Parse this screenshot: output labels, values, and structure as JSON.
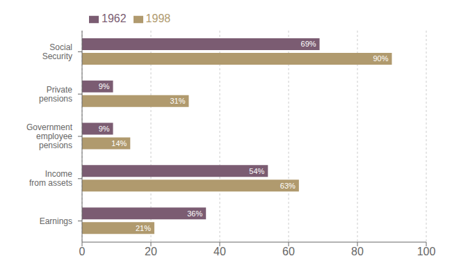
{
  "chart_data": {
    "type": "bar",
    "orientation": "horizontal",
    "categories": [
      "Social\nSecurity",
      "Private\npensions",
      "Government\nemployee\npensions",
      "Income\nfrom assets",
      "Earnings"
    ],
    "series": [
      {
        "name": "1962",
        "color": "#7b5c72",
        "values": [
          69,
          9,
          9,
          54,
          36
        ],
        "value_labels": [
          "69%",
          "9%",
          "9%",
          "54%",
          "36%"
        ]
      },
      {
        "name": "1998",
        "color": "#b09a6e",
        "values": [
          90,
          31,
          14,
          63,
          21
        ],
        "value_labels": [
          "90%",
          "31%",
          "14%",
          "63%",
          "21%"
        ]
      }
    ],
    "xlim": [
      0,
      100
    ],
    "xticks": [
      0,
      20,
      40,
      60,
      80,
      100
    ],
    "grid": true,
    "legend": "upper left",
    "data_labels": true
  }
}
